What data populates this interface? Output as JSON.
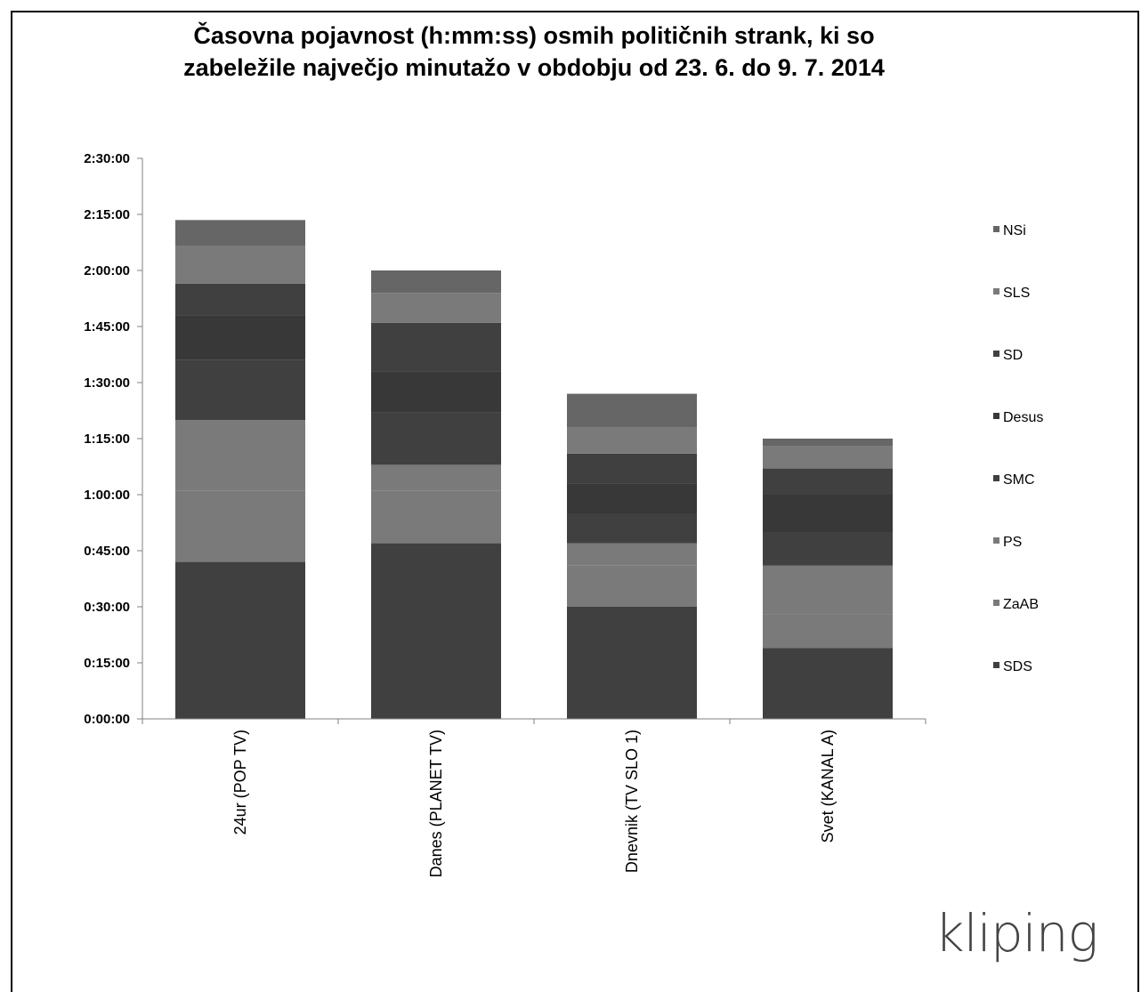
{
  "chart_data": {
    "type": "bar",
    "stacked": true,
    "title": "Časovna pojavnost (h:mm:ss) osmih političnih strank, ki so zabeležile največjo minutažo v obdobju od 23. 6. do 9. 7. 2014",
    "title_lines": [
      "Časovna pojavnost (h:mm:ss) osmih političnih strank, ki so",
      "zabeležile največjo minutažo v obdobju od 23. 6. do 9. 7. 2014"
    ],
    "xlabel": "",
    "ylabel": "",
    "unit": "minutes",
    "ylim": [
      0,
      150
    ],
    "yticks": [
      0,
      15,
      30,
      45,
      60,
      75,
      90,
      105,
      120,
      135,
      150
    ],
    "ytick_labels": [
      "0:00:00",
      "0:15:00",
      "0:30:00",
      "0:45:00",
      "1:00:00",
      "1:15:00",
      "1:30:00",
      "1:45:00",
      "2:00:00",
      "2:15:00",
      "2:30:00"
    ],
    "categories": [
      "24ur (POP TV)",
      "Danes (PLANET TV)",
      "Dnevnik (TV SLO 1)",
      "Svet (KANAL A)"
    ],
    "series": [
      {
        "name": "SDS",
        "color": "#404040",
        "values": [
          42,
          47,
          30,
          19
        ]
      },
      {
        "name": "ZaAB",
        "color": "#7a7a7a",
        "values": [
          19,
          14,
          11,
          9
        ]
      },
      {
        "name": "PS",
        "color": "#7a7a7a",
        "values": [
          19,
          7,
          6,
          13
        ]
      },
      {
        "name": "SMC",
        "color": "#404040",
        "values": [
          16,
          14,
          8,
          9
        ]
      },
      {
        "name": "Desus",
        "color": "#383838",
        "values": [
          12,
          11,
          8,
          10
        ]
      },
      {
        "name": "SD",
        "color": "#404040",
        "values": [
          8.5,
          13,
          8,
          7
        ]
      },
      {
        "name": "SLS",
        "color": "#7a7a7a",
        "values": [
          10,
          8,
          7,
          6
        ]
      },
      {
        "name": "NSi",
        "color": "#666666",
        "values": [
          7,
          6,
          9,
          2
        ]
      }
    ],
    "legend_position": "right",
    "grid": false
  },
  "logo": {
    "text": "kliping"
  }
}
